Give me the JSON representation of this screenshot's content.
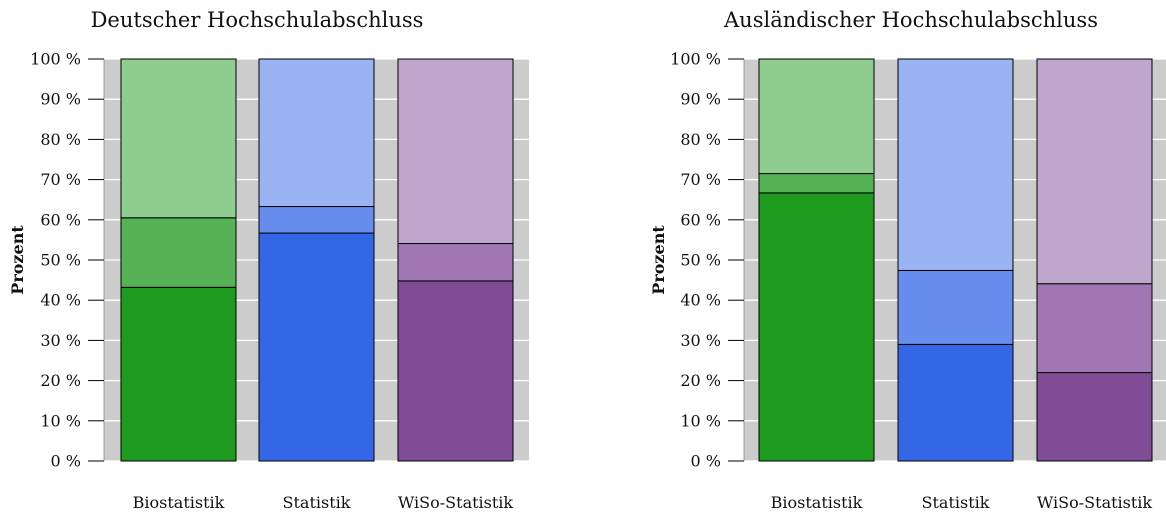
{
  "chart_data": [
    {
      "type": "bar",
      "stacked": true,
      "title": "Deutscher Hochschulabschluss",
      "ylabel": "Prozent",
      "xlabel": "",
      "ylim": [
        0,
        100
      ],
      "y_ticks": [
        "0 %",
        "10 %",
        "20 %",
        "30 %",
        "40 %",
        "50 %",
        "60 %",
        "70 %",
        "80 %",
        "90 %",
        "100 %"
      ],
      "categories": [
        "Biostatistik",
        "Statistik",
        "WiSo-Statistik"
      ],
      "stacks": [
        {
          "category": "Biostatistik",
          "segments": [
            43.2,
            17.3,
            39.5
          ],
          "colors": [
            "#1e9a1e",
            "#55b355",
            "#8fcc8f"
          ]
        },
        {
          "category": "Statistik",
          "segments": [
            56.7,
            6.6,
            36.7
          ],
          "colors": [
            "#3367e6",
            "#678def",
            "#99b3f3"
          ]
        },
        {
          "category": "WiSo-Statistik",
          "segments": [
            44.8,
            9.3,
            45.9
          ],
          "colors": [
            "#804c96",
            "#a077b3",
            "#bfa6cc"
          ]
        }
      ],
      "grid": true,
      "legend": "none"
    },
    {
      "type": "bar",
      "stacked": true,
      "title": "Ausländischer Hochschulabschluss",
      "ylabel": "Prozent",
      "xlabel": "",
      "ylim": [
        0,
        100
      ],
      "y_ticks": [
        "0 %",
        "10 %",
        "20 %",
        "30 %",
        "40 %",
        "50 %",
        "60 %",
        "70 %",
        "80 %",
        "90 %",
        "100 %"
      ],
      "categories": [
        "Biostatistik",
        "Statistik",
        "WiSo-Statistik"
      ],
      "stacks": [
        {
          "category": "Biostatistik",
          "segments": [
            66.7,
            4.8,
            28.5
          ],
          "colors": [
            "#1e9a1e",
            "#55b355",
            "#8fcc8f"
          ]
        },
        {
          "category": "Statistik",
          "segments": [
            29.0,
            18.4,
            52.6
          ],
          "colors": [
            "#3367e6",
            "#678def",
            "#99b3f3"
          ]
        },
        {
          "category": "WiSo-Statistik",
          "segments": [
            22.0,
            22.1,
            55.9
          ],
          "colors": [
            "#804c96",
            "#a077b3",
            "#bfa6cc"
          ]
        }
      ],
      "grid": true,
      "legend": "none"
    }
  ]
}
